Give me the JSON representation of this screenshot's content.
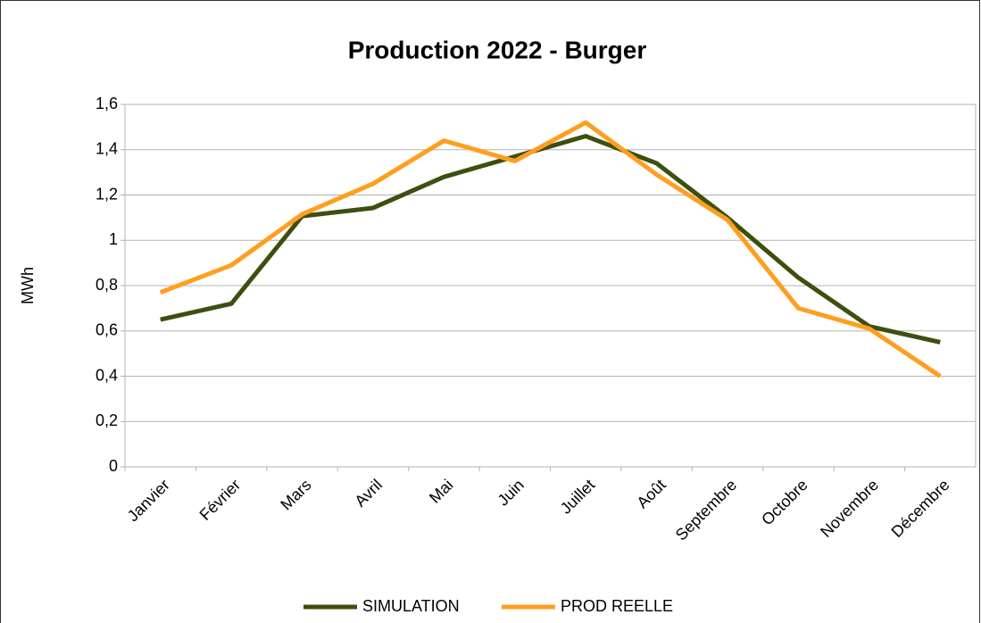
{
  "chart_data": {
    "type": "line",
    "title": "Production 2022 - Burger",
    "y_label": "MWh",
    "categories": [
      "Janvier",
      "Février",
      "Mars",
      "Avril",
      "Mai",
      "Juin",
      "Juillet",
      "Août",
      "Septembre",
      "Octobre",
      "Novembre",
      "Décembre"
    ],
    "series": [
      {
        "name": "SIMULATION",
        "color": "#3d4f0e",
        "values": [
          0.65,
          0.72,
          1.107,
          1.143,
          1.28,
          1.37,
          1.46,
          1.34,
          1.1,
          0.835,
          0.62,
          0.55
        ]
      },
      {
        "name": "PROD REELLE",
        "color": "#ff9e1f",
        "values": [
          0.77,
          0.89,
          1.115,
          1.25,
          1.44,
          1.35,
          1.52,
          1.29,
          1.09,
          0.7,
          0.61,
          0.4
        ]
      }
    ],
    "ylim": [
      0,
      1.6
    ],
    "yticks": [
      0,
      {
        "value": 0.2,
        "label": "0,2"
      },
      {
        "value": 0.4,
        "label": "0,4"
      },
      {
        "value": 0.6,
        "label": "0,6"
      },
      {
        "value": 0.8,
        "label": "0,8"
      },
      1,
      {
        "value": 1.2,
        "label": "1,2"
      },
      {
        "value": 1.4,
        "label": "1,4"
      },
      {
        "value": 1.6,
        "label": "1,6"
      }
    ],
    "grid": true,
    "legend": "bottom"
  }
}
